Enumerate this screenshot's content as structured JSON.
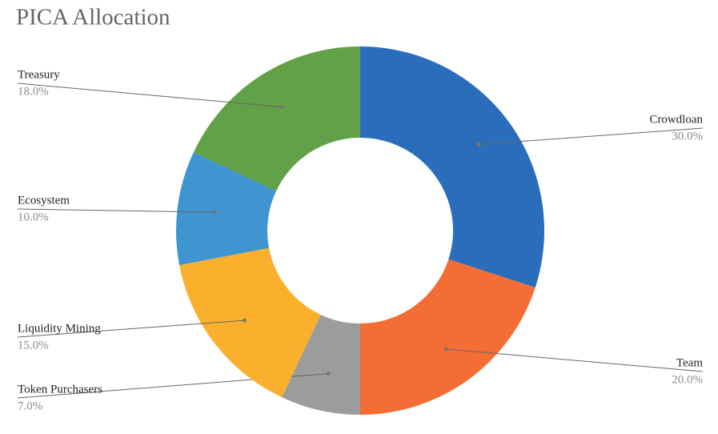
{
  "chart_data": {
    "type": "donut",
    "title": "PICA Allocation",
    "categories": [
      "Crowdloan",
      "Team",
      "Token Purchasers",
      "Liquidity Mining",
      "Ecosystem",
      "Treasury"
    ],
    "values": [
      30,
      20,
      7,
      15,
      10,
      18
    ],
    "value_labels": [
      "30.0%",
      "20.0%",
      "7.0%",
      "15.0%",
      "10.0%",
      "18.0%"
    ],
    "colors": [
      "#2a6ebb",
      "#f46d35",
      "#9c9c9c",
      "#fbb02d",
      "#3e95cf",
      "#62a147"
    ]
  }
}
